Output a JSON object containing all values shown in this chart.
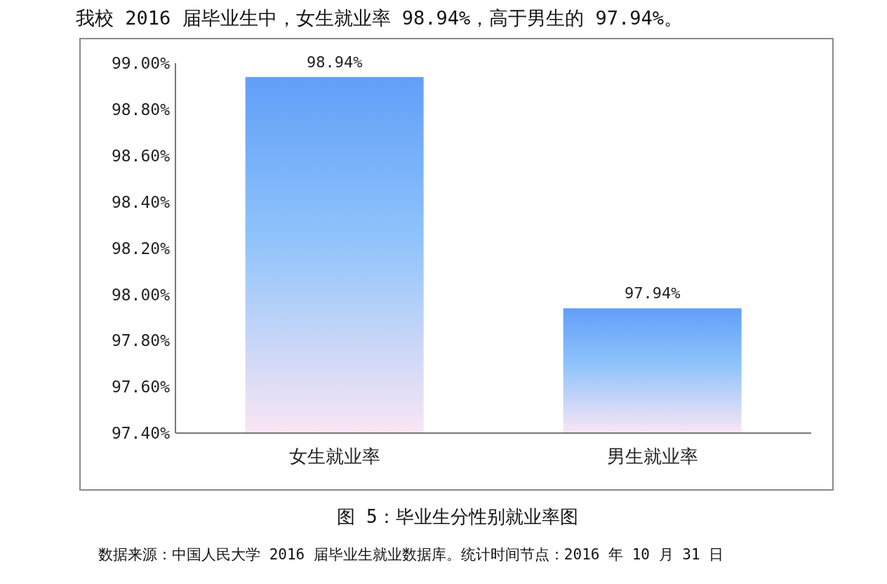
{
  "chart_data": {
    "type": "bar",
    "title": "我校 2016 届毕业生中，女生就业率 98.94%，高于男生的 97.94%。",
    "categories": [
      "女生就业率",
      "男生就业率"
    ],
    "values": [
      98.94,
      97.94
    ],
    "value_labels": [
      "98.94%",
      "97.94%"
    ],
    "color": "#619ff8",
    "ylim": [
      97.4,
      99.0
    ],
    "yticks": [
      {
        "value": 97.4,
        "label": "97.40%"
      },
      {
        "value": 97.6,
        "label": "97.60%"
      },
      {
        "value": 97.8,
        "label": "97.80%"
      },
      {
        "value": 98.0,
        "label": "98.00%"
      },
      {
        "value": 98.2,
        "label": "98.20%"
      },
      {
        "value": 98.4,
        "label": "98.40%"
      },
      {
        "value": 98.6,
        "label": "98.60%"
      },
      {
        "value": 98.8,
        "label": "98.80%"
      },
      {
        "value": 99.0,
        "label": "99.00%"
      }
    ],
    "grid": false,
    "legend": false,
    "annotations": [
      "图 5：毕业生分性别就业率图",
      "数据来源：中国人民大学 2016 届毕业生就业数据库。统计时间节点：2016 年 10 月 31 日"
    ]
  }
}
